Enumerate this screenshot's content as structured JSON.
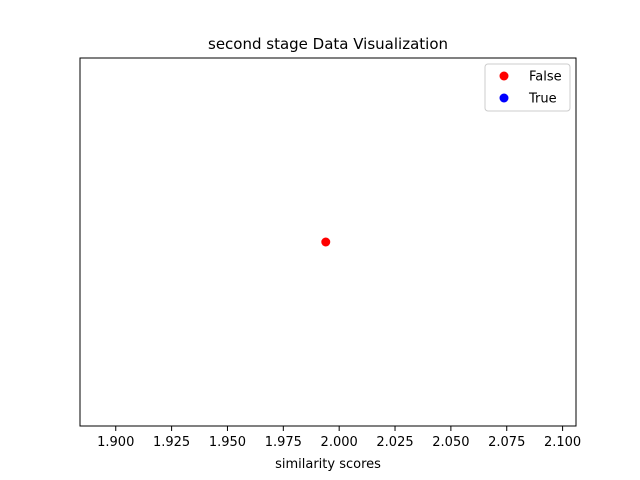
{
  "chart_data": {
    "type": "scatter",
    "title": "second stage Data Visualization",
    "xlabel": "similarity scores",
    "ylabel": "",
    "xlim": [
      1.884,
      2.106
    ],
    "ylim": [
      -1,
      1
    ],
    "xticks": [
      1.9,
      1.925,
      1.95,
      1.975,
      2.0,
      2.025,
      2.05,
      2.075,
      2.1
    ],
    "xtick_labels": [
      "1.900",
      "1.925",
      "1.950",
      "1.975",
      "2.000",
      "2.025",
      "2.050",
      "2.075",
      "2.100"
    ],
    "yticks_visible": false,
    "grid": false,
    "legend_position": "top-right",
    "series": [
      {
        "name": "False",
        "color": "#ff0000",
        "points": [
          {
            "x": 1.994,
            "y": 0
          }
        ]
      },
      {
        "name": "True",
        "color": "#0000ff",
        "points": []
      }
    ]
  }
}
